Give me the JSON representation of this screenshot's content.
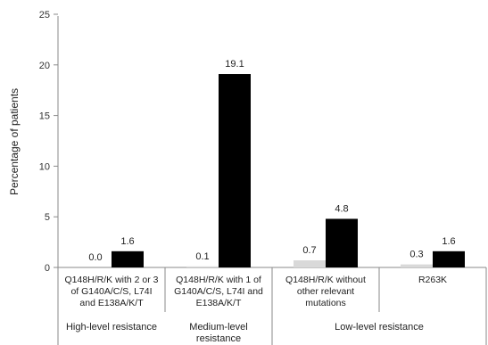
{
  "chart_data": {
    "type": "bar",
    "ylabel": "Percentage of patients",
    "ylim": [
      0,
      25
    ],
    "yticks": [
      "0",
      "5",
      "10",
      "15",
      "20",
      "25"
    ],
    "grid": false,
    "categories": [
      [
        "Q148H/R/K with 2 or 3",
        "of G140A/C/S, L74I",
        "and E138A/K/T"
      ],
      [
        "Q148H/R/K with 1 of",
        "G140A/C/S, L74I and",
        "E138A/K/T"
      ],
      [
        "Q148H/R/K without",
        "other relevant",
        "mutations"
      ],
      [
        "R263K"
      ]
    ],
    "groups": [
      {
        "label": [
          "High-level resistance"
        ],
        "span": [
          0,
          0
        ]
      },
      {
        "label": [
          "Medium-level",
          "resistance"
        ],
        "span": [
          1,
          1
        ]
      },
      {
        "label": [
          "Low-level resistance"
        ],
        "span": [
          2,
          3
        ]
      }
    ],
    "series": [
      {
        "color": "#d9d9d9",
        "values": [
          0.0,
          0.1,
          0.7,
          0.3
        ],
        "labels": [
          "0.0",
          "0.1",
          "0.7",
          "0.3"
        ]
      },
      {
        "color": "#000000",
        "values": [
          1.6,
          19.1,
          4.8,
          1.6
        ],
        "labels": [
          "1.6",
          "19.1",
          "4.8",
          "1.6"
        ]
      }
    ]
  }
}
